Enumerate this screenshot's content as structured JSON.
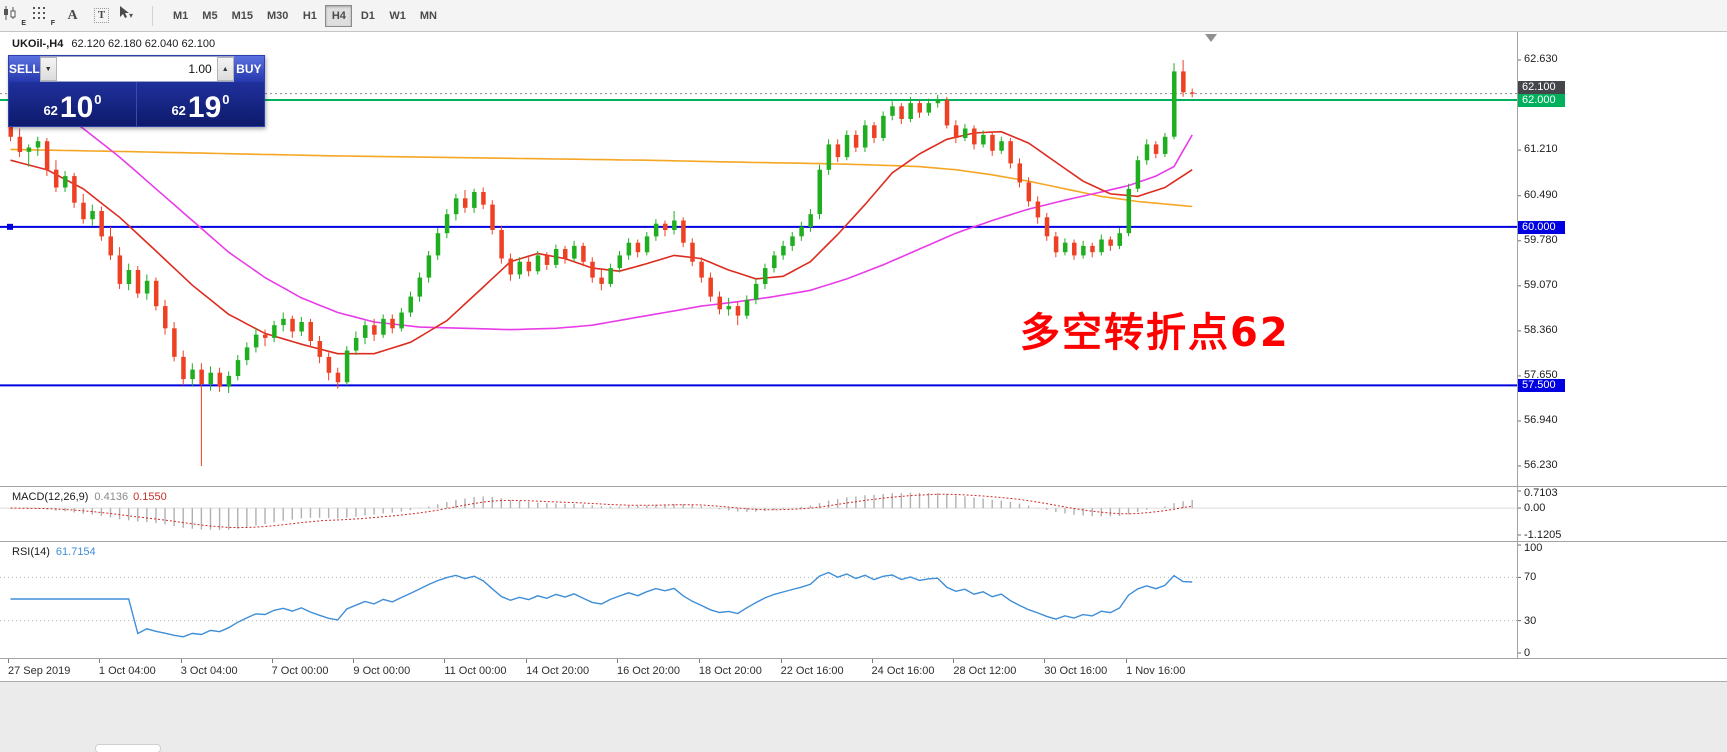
{
  "toolbar": {
    "icons": [
      {
        "name": "candlestick-pattern-icon",
        "badge": "E"
      },
      {
        "name": "grid-dots-icon",
        "badge": "F"
      },
      {
        "name": "text-label-icon",
        "glyph": "A"
      },
      {
        "name": "text-box-icon",
        "glyph": "T"
      },
      {
        "name": "cursor-dropdown-icon",
        "caret": "▾"
      }
    ],
    "timeframes": [
      "M1",
      "M5",
      "M15",
      "M30",
      "H1",
      "H4",
      "D1",
      "W1",
      "MN"
    ],
    "active_timeframe": "H4"
  },
  "symbol_header": {
    "symbol": "UKOil-,H4",
    "ohlc": "62.120 62.180 62.040 62.100"
  },
  "trade_panel": {
    "sell_label": "SELL",
    "buy_label": "BUY",
    "volume": "1.00",
    "bid": {
      "small": "62",
      "big": "10",
      "sup": "0"
    },
    "ask": {
      "small": "62",
      "big": "19",
      "sup": "0"
    }
  },
  "annotation": {
    "text": "多空转折点62",
    "color": "#ff0000"
  },
  "indicators": {
    "macd": {
      "name": "MACD(12,26,9)",
      "value_main": "0.4136",
      "value_signal": "0.1550"
    },
    "rsi": {
      "name": "RSI(14)",
      "value": "61.7154"
    }
  },
  "chart_data": {
    "type": "candlestick",
    "symbol": "UKOil-",
    "timeframe": "H4",
    "ohlc_current": {
      "open": 62.12,
      "high": 62.18,
      "low": 62.04,
      "close": 62.1
    },
    "colors": {
      "up": "#1fae1f",
      "down": "#ee4023",
      "ma_fast": "#dd2c1f",
      "ma_mid": "#e93ce9",
      "ma_slow": "#f5a623",
      "hline_blue": "#0000e0",
      "hline_green": "#00b05c",
      "current_badge": "#43464b",
      "macd_hist": "#b0b0b0",
      "macd_signal": "#d02a2a",
      "rsi_line": "#3f8ed8",
      "level_dotted": "#b8b8b8"
    },
    "price_axis_labels": [
      {
        "p": 62.63,
        "t": "62.630"
      },
      {
        "p": 61.21,
        "t": "61.210"
      },
      {
        "p": 60.49,
        "t": "60.490"
      },
      {
        "p": 59.78,
        "t": "59.780"
      },
      {
        "p": 59.07,
        "t": "59.070"
      },
      {
        "p": 58.36,
        "t": "58.360"
      },
      {
        "p": 57.65,
        "t": "57.650"
      },
      {
        "p": 56.94,
        "t": "56.940"
      },
      {
        "p": 56.23,
        "t": "56.230"
      }
    ],
    "hlines": [
      {
        "price": 62.0,
        "label": "62.000",
        "color": "#00b05c",
        "width": 2,
        "marker": false
      },
      {
        "price": 60.0,
        "label": "60.000",
        "color": "#0000e0",
        "width": 2,
        "marker": true
      },
      {
        "price": 57.5,
        "label": "57.500",
        "color": "#0000e0",
        "width": 2,
        "marker": false
      }
    ],
    "current_price": {
      "price": 62.1,
      "label": "62.100"
    },
    "candles": [
      [
        61.68,
        61.75,
        61.35,
        61.42
      ],
      [
        61.42,
        61.55,
        61.1,
        61.18
      ],
      [
        61.18,
        61.3,
        60.95,
        61.25
      ],
      [
        61.25,
        61.42,
        61.12,
        61.35
      ],
      [
        61.35,
        61.4,
        60.8,
        60.9
      ],
      [
        60.9,
        61.05,
        60.55,
        60.62
      ],
      [
        60.62,
        60.88,
        60.55,
        60.8
      ],
      [
        60.8,
        60.85,
        60.3,
        60.38
      ],
      [
        60.38,
        60.52,
        60.05,
        60.12
      ],
      [
        60.12,
        60.35,
        60.02,
        60.25
      ],
      [
        60.25,
        60.32,
        59.78,
        59.85
      ],
      [
        59.85,
        60.0,
        59.48,
        59.55
      ],
      [
        59.55,
        59.68,
        59.02,
        59.1
      ],
      [
        59.1,
        59.42,
        59.0,
        59.32
      ],
      [
        59.32,
        59.38,
        58.88,
        58.95
      ],
      [
        58.95,
        59.25,
        58.85,
        59.15
      ],
      [
        59.15,
        59.2,
        58.68,
        58.75
      ],
      [
        58.75,
        58.85,
        58.3,
        58.4
      ],
      [
        58.4,
        58.5,
        57.88,
        57.95
      ],
      [
        57.95,
        58.05,
        57.5,
        57.6
      ],
      [
        57.6,
        57.85,
        57.48,
        57.75
      ],
      [
        57.75,
        57.85,
        56.23,
        57.52
      ],
      [
        57.52,
        57.8,
        57.42,
        57.7
      ],
      [
        57.7,
        57.78,
        57.4,
        57.48
      ],
      [
        57.48,
        57.72,
        57.38,
        57.65
      ],
      [
        57.65,
        57.98,
        57.58,
        57.9
      ],
      [
        57.9,
        58.18,
        57.82,
        58.1
      ],
      [
        58.1,
        58.4,
        58.02,
        58.3
      ],
      [
        58.3,
        58.38,
        58.12,
        58.25
      ],
      [
        58.25,
        58.52,
        58.18,
        58.45
      ],
      [
        58.45,
        58.65,
        58.35,
        58.55
      ],
      [
        58.55,
        58.6,
        58.25,
        58.35
      ],
      [
        58.35,
        58.58,
        58.28,
        58.5
      ],
      [
        58.5,
        58.55,
        58.1,
        58.2
      ],
      [
        58.2,
        58.28,
        57.85,
        57.95
      ],
      [
        57.95,
        58.02,
        57.58,
        57.7
      ],
      [
        57.7,
        57.78,
        57.45,
        57.55
      ],
      [
        57.55,
        58.12,
        57.5,
        58.05
      ],
      [
        58.05,
        58.35,
        57.98,
        58.25
      ],
      [
        58.25,
        58.52,
        58.15,
        58.45
      ],
      [
        58.45,
        58.55,
        58.2,
        58.3
      ],
      [
        58.3,
        58.62,
        58.25,
        58.55
      ],
      [
        58.55,
        58.62,
        58.32,
        58.4
      ],
      [
        58.4,
        58.72,
        58.35,
        58.65
      ],
      [
        58.65,
        58.98,
        58.58,
        58.9
      ],
      [
        58.9,
        59.28,
        58.82,
        59.2
      ],
      [
        59.2,
        59.62,
        59.12,
        59.55
      ],
      [
        59.55,
        59.98,
        59.48,
        59.9
      ],
      [
        59.9,
        60.28,
        59.82,
        60.2
      ],
      [
        60.2,
        60.52,
        60.1,
        60.45
      ],
      [
        60.45,
        60.58,
        60.22,
        60.3
      ],
      [
        60.3,
        60.6,
        60.22,
        60.55
      ],
      [
        60.55,
        60.62,
        60.28,
        60.35
      ],
      [
        60.35,
        60.42,
        59.88,
        59.95
      ],
      [
        59.95,
        60.02,
        59.42,
        59.5
      ],
      [
        59.5,
        59.58,
        59.15,
        59.25
      ],
      [
        59.25,
        59.52,
        59.18,
        59.45
      ],
      [
        59.45,
        59.52,
        59.22,
        59.3
      ],
      [
        59.3,
        59.62,
        59.25,
        59.55
      ],
      [
        59.55,
        59.6,
        59.32,
        59.4
      ],
      [
        59.4,
        59.72,
        59.35,
        59.65
      ],
      [
        59.65,
        59.7,
        59.42,
        59.5
      ],
      [
        59.5,
        59.78,
        59.45,
        59.7
      ],
      [
        59.7,
        59.75,
        59.38,
        59.45
      ],
      [
        59.45,
        59.52,
        59.12,
        59.2
      ],
      [
        59.2,
        59.32,
        59.0,
        59.1
      ],
      [
        59.1,
        59.42,
        59.05,
        59.35
      ],
      [
        59.35,
        59.62,
        59.28,
        59.55
      ],
      [
        59.55,
        59.82,
        59.48,
        59.75
      ],
      [
        59.75,
        59.8,
        59.52,
        59.6
      ],
      [
        59.6,
        59.92,
        59.55,
        59.85
      ],
      [
        59.85,
        60.12,
        59.78,
        60.05
      ],
      [
        60.05,
        60.1,
        59.85,
        59.95
      ],
      [
        59.95,
        60.25,
        59.88,
        60.1
      ],
      [
        60.1,
        60.15,
        59.68,
        59.75
      ],
      [
        59.75,
        59.82,
        59.38,
        59.45
      ],
      [
        59.45,
        59.52,
        59.12,
        59.2
      ],
      [
        59.2,
        59.28,
        58.82,
        58.9
      ],
      [
        58.9,
        58.98,
        58.62,
        58.7
      ],
      [
        58.7,
        58.88,
        58.6,
        58.75
      ],
      [
        58.75,
        58.82,
        58.45,
        58.6
      ],
      [
        58.6,
        58.92,
        58.55,
        58.85
      ],
      [
        58.85,
        59.18,
        58.78,
        59.1
      ],
      [
        59.1,
        59.42,
        59.02,
        59.35
      ],
      [
        59.35,
        59.62,
        59.28,
        59.55
      ],
      [
        59.55,
        59.78,
        59.48,
        59.7
      ],
      [
        59.7,
        59.92,
        59.62,
        59.85
      ],
      [
        59.85,
        60.08,
        59.78,
        60.0
      ],
      [
        60.0,
        60.28,
        59.92,
        60.2
      ],
      [
        60.2,
        60.98,
        60.12,
        60.9
      ],
      [
        60.9,
        61.38,
        60.82,
        61.3
      ],
      [
        61.3,
        61.38,
        61.02,
        61.1
      ],
      [
        61.1,
        61.52,
        61.05,
        61.45
      ],
      [
        61.45,
        61.52,
        61.18,
        61.25
      ],
      [
        61.25,
        61.68,
        61.18,
        61.6
      ],
      [
        61.6,
        61.65,
        61.32,
        61.4
      ],
      [
        61.4,
        61.82,
        61.35,
        61.75
      ],
      [
        61.75,
        61.98,
        61.68,
        61.9
      ],
      [
        61.9,
        61.95,
        61.62,
        61.7
      ],
      [
        61.7,
        62.05,
        61.65,
        61.95
      ],
      [
        61.95,
        62.0,
        61.72,
        61.8
      ],
      [
        61.8,
        62.02,
        61.75,
        61.95
      ],
      [
        61.95,
        62.08,
        61.88,
        62.0
      ],
      [
        62.0,
        62.05,
        61.55,
        61.6
      ],
      [
        61.6,
        61.68,
        61.32,
        61.4
      ],
      [
        61.4,
        61.62,
        61.35,
        61.55
      ],
      [
        61.55,
        61.6,
        61.22,
        61.3
      ],
      [
        61.3,
        61.52,
        61.25,
        61.45
      ],
      [
        61.45,
        61.5,
        61.12,
        61.2
      ],
      [
        61.2,
        61.42,
        61.15,
        61.35
      ],
      [
        61.35,
        61.4,
        60.92,
        61.0
      ],
      [
        61.0,
        61.08,
        60.62,
        60.7
      ],
      [
        60.7,
        60.78,
        60.32,
        60.4
      ],
      [
        60.4,
        60.48,
        60.05,
        60.15
      ],
      [
        60.15,
        60.22,
        59.78,
        59.85
      ],
      [
        59.85,
        59.92,
        59.52,
        59.6
      ],
      [
        59.6,
        59.82,
        59.55,
        59.75
      ],
      [
        59.75,
        59.8,
        59.48,
        59.55
      ],
      [
        59.55,
        59.78,
        59.5,
        59.7
      ],
      [
        59.7,
        59.75,
        59.52,
        59.6
      ],
      [
        59.6,
        59.88,
        59.55,
        59.8
      ],
      [
        59.8,
        59.85,
        59.62,
        59.7
      ],
      [
        59.7,
        59.98,
        59.65,
        59.9
      ],
      [
        59.9,
        60.68,
        59.85,
        60.6
      ],
      [
        60.6,
        61.12,
        60.55,
        61.05
      ],
      [
        61.05,
        61.38,
        60.98,
        61.3
      ],
      [
        61.3,
        61.35,
        61.08,
        61.15
      ],
      [
        61.15,
        61.48,
        61.1,
        61.42
      ],
      [
        61.42,
        62.58,
        61.38,
        62.45
      ],
      [
        62.45,
        62.63,
        62.05,
        62.12
      ],
      [
        62.12,
        62.18,
        62.04,
        62.1
      ]
    ],
    "ma_lines": [
      {
        "name": "ma-slow-orange",
        "color": "#f5a623",
        "points": [
          [
            0,
            61.22
          ],
          [
            15,
            61.18
          ],
          [
            35,
            61.12
          ],
          [
            55,
            61.08
          ],
          [
            70,
            61.05
          ],
          [
            80,
            61.02
          ],
          [
            88,
            61.0
          ],
          [
            94,
            60.98
          ],
          [
            100,
            60.95
          ],
          [
            104,
            60.9
          ],
          [
            108,
            60.82
          ],
          [
            112,
            60.72
          ],
          [
            116,
            60.6
          ],
          [
            120,
            60.48
          ],
          [
            124,
            60.4
          ],
          [
            127,
            60.36
          ],
          [
            130,
            60.32
          ]
        ]
      },
      {
        "name": "ma-mid-magenta",
        "color": "#e93ce9",
        "points": [
          [
            0,
            62.25
          ],
          [
            4,
            61.95
          ],
          [
            8,
            61.55
          ],
          [
            12,
            61.1
          ],
          [
            16,
            60.6
          ],
          [
            20,
            60.1
          ],
          [
            24,
            59.6
          ],
          [
            28,
            59.2
          ],
          [
            32,
            58.88
          ],
          [
            36,
            58.65
          ],
          [
            40,
            58.5
          ],
          [
            45,
            58.42
          ],
          [
            50,
            58.4
          ],
          [
            55,
            58.38
          ],
          [
            60,
            58.4
          ],
          [
            64,
            58.45
          ],
          [
            68,
            58.55
          ],
          [
            72,
            58.65
          ],
          [
            76,
            58.75
          ],
          [
            80,
            58.82
          ],
          [
            84,
            58.9
          ],
          [
            88,
            59.0
          ],
          [
            92,
            59.18
          ],
          [
            96,
            59.4
          ],
          [
            100,
            59.65
          ],
          [
            104,
            59.9
          ],
          [
            108,
            60.1
          ],
          [
            112,
            60.28
          ],
          [
            116,
            60.42
          ],
          [
            120,
            60.55
          ],
          [
            123,
            60.65
          ],
          [
            126,
            60.8
          ],
          [
            128,
            60.95
          ],
          [
            130,
            61.45
          ]
        ]
      },
      {
        "name": "ma-fast-red",
        "color": "#dd2c1f",
        "points": [
          [
            0,
            61.05
          ],
          [
            4,
            60.9
          ],
          [
            8,
            60.6
          ],
          [
            12,
            60.15
          ],
          [
            16,
            59.62
          ],
          [
            20,
            59.08
          ],
          [
            24,
            58.62
          ],
          [
            28,
            58.32
          ],
          [
            32,
            58.15
          ],
          [
            36,
            58.0
          ],
          [
            40,
            58.0
          ],
          [
            44,
            58.18
          ],
          [
            48,
            58.52
          ],
          [
            52,
            59.05
          ],
          [
            55,
            59.45
          ],
          [
            58,
            59.58
          ],
          [
            61,
            59.5
          ],
          [
            64,
            59.35
          ],
          [
            67,
            59.3
          ],
          [
            70,
            59.42
          ],
          [
            73,
            59.55
          ],
          [
            76,
            59.5
          ],
          [
            79,
            59.32
          ],
          [
            82,
            59.18
          ],
          [
            85,
            59.22
          ],
          [
            88,
            59.45
          ],
          [
            91,
            59.88
          ],
          [
            94,
            60.35
          ],
          [
            97,
            60.85
          ],
          [
            100,
            61.15
          ],
          [
            103,
            61.38
          ],
          [
            106,
            61.48
          ],
          [
            109,
            61.5
          ],
          [
            112,
            61.32
          ],
          [
            115,
            61.02
          ],
          [
            118,
            60.72
          ],
          [
            121,
            60.52
          ],
          [
            124,
            60.48
          ],
          [
            127,
            60.62
          ],
          [
            130,
            60.9
          ]
        ]
      }
    ],
    "macd": {
      "params": [
        12,
        26,
        9
      ],
      "range": [
        -1.1205,
        0.7103
      ],
      "axis": [
        {
          "v": 0.7103,
          "t": "0.7103"
        },
        {
          "v": 0,
          "t": "0.00"
        },
        {
          "v": -1.1205,
          "t": "-1.1205"
        }
      ]
    },
    "rsi": {
      "period": 14,
      "levels": [
        70,
        30
      ],
      "axis": [
        {
          "v": 100,
          "t": "100"
        },
        {
          "v": 70,
          "t": "70"
        },
        {
          "v": 30,
          "t": "30"
        },
        {
          "v": 0,
          "t": "0"
        }
      ]
    },
    "time_axis": [
      {
        "i": 0,
        "t": "27 Sep 2019"
      },
      {
        "i": 10,
        "t": "1 Oct 04:00"
      },
      {
        "i": 19,
        "t": "3 Oct 04:00"
      },
      {
        "i": 29,
        "t": "7 Oct 00:00"
      },
      {
        "i": 38,
        "t": "9 Oct 00:00"
      },
      {
        "i": 48,
        "t": "11 Oct 00:00"
      },
      {
        "i": 57,
        "t": "14 Oct 20:00"
      },
      {
        "i": 67,
        "t": "16 Oct 20:00"
      },
      {
        "i": 76,
        "t": "18 Oct 20:00"
      },
      {
        "i": 85,
        "t": "22 Oct 16:00"
      },
      {
        "i": 95,
        "t": "24 Oct 16:00"
      },
      {
        "i": 104,
        "t": "28 Oct 12:00"
      },
      {
        "i": 114,
        "t": "30 Oct 16:00"
      },
      {
        "i": 123,
        "t": "1 Nov 16:00"
      }
    ]
  }
}
